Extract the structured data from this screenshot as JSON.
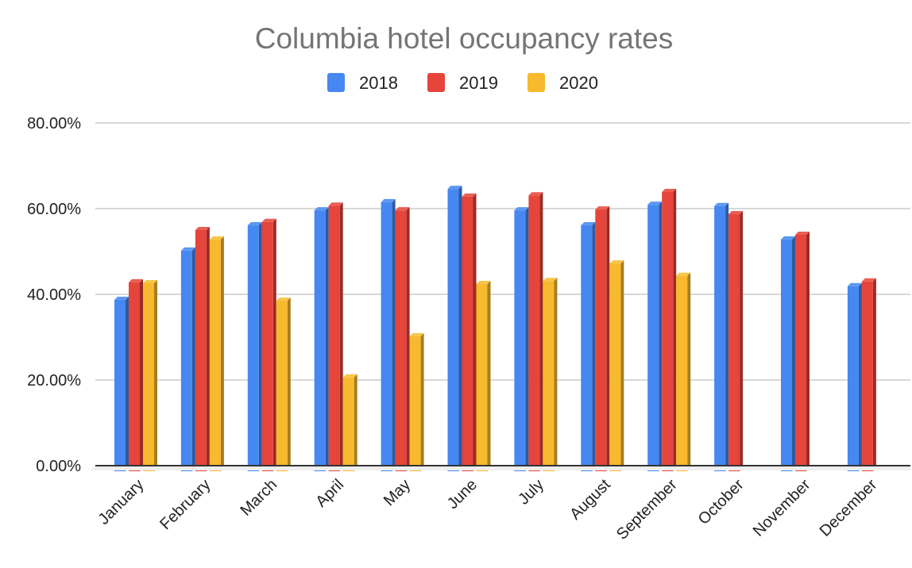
{
  "chart_data": {
    "type": "bar",
    "title": "Columbia hotel occupancy rates",
    "xlabel": "",
    "ylabel": "",
    "ylim": [
      0,
      80
    ],
    "y_ticks": [
      "0.00%",
      "20.00%",
      "40.00%",
      "60.00%",
      "80.00%"
    ],
    "y_tick_values": [
      0,
      20,
      40,
      60,
      80
    ],
    "grid": true,
    "legend_position": "top-center",
    "categories": [
      "January",
      "February",
      "March",
      "April",
      "May",
      "June",
      "July",
      "August",
      "September",
      "October",
      "November",
      "December"
    ],
    "series": [
      {
        "name": "2018",
        "color": "#4688f1",
        "side_color": "#2d5aa0",
        "top_color": "#5c98f3",
        "values": [
          38.7,
          50.2,
          56.1,
          59.6,
          61.5,
          64.6,
          59.6,
          56.1,
          60.9,
          60.6,
          52.8,
          41.9
        ]
      },
      {
        "name": "2019",
        "color": "#e5453b",
        "side_color": "#9a2c26",
        "top_color": "#ea5e55",
        "values": [
          42.8,
          55.0,
          56.9,
          60.7,
          59.6,
          62.8,
          63.1,
          59.8,
          63.9,
          58.7,
          53.9,
          43.0
        ]
      },
      {
        "name": "2020",
        "color": "#f7b92d",
        "side_color": "#a77d1e",
        "top_color": "#f9c548",
        "values": [
          42.6,
          52.8,
          38.5,
          20.6,
          30.2,
          42.4,
          43.1,
          47.2,
          44.3,
          null,
          null,
          null
        ]
      }
    ]
  }
}
